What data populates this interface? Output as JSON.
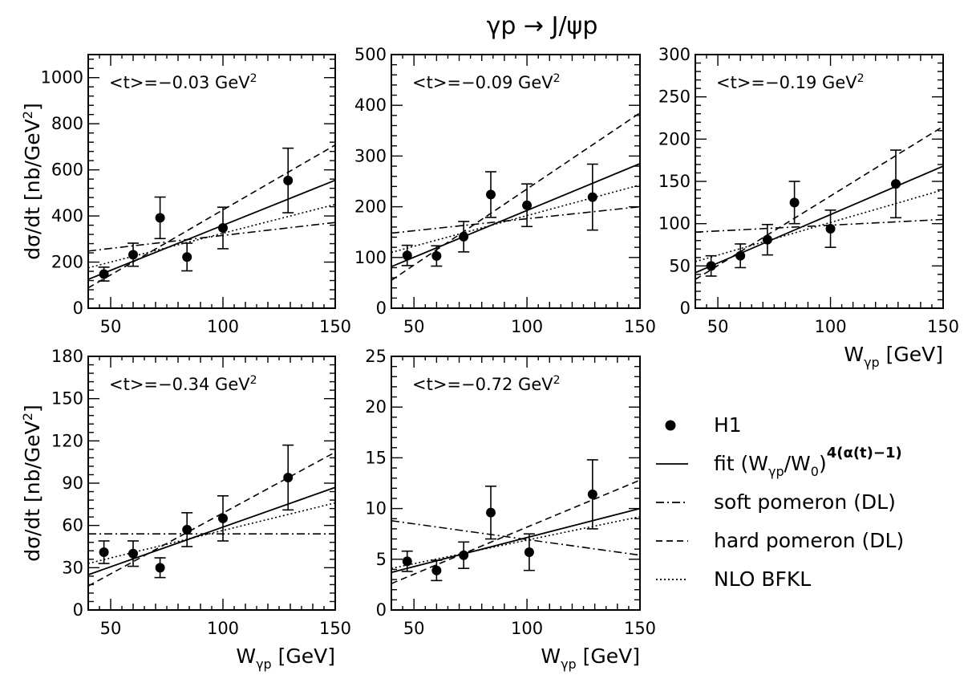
{
  "figure": {
    "title": "γp → J/ψp",
    "legend": {
      "placement": "bottom-right",
      "items": [
        {
          "key": "h1",
          "label": "H1",
          "marker": "filled-circle"
        },
        {
          "key": "fit",
          "label": "fit (W",
          "label_sub": "γp",
          "label_mid": "/W",
          "label_sub2": "0",
          "label_mid2": ")",
          "label_sup": "4(α(t)−1)",
          "style": "solid"
        },
        {
          "key": "soft",
          "label": "soft pomeron (DL)",
          "style": "dashdot"
        },
        {
          "key": "hard",
          "label": "hard pomeron (DL)",
          "style": "dashed"
        },
        {
          "key": "bfkl",
          "label": "NLO BFKL",
          "style": "dotted"
        }
      ]
    }
  },
  "chart_data": [
    {
      "type": "scatter",
      "annotation": "<t>=−0.03 GeV",
      "annotation_sup": "2",
      "ylabel": "dσ/dt [nb/GeV",
      "ylabel_sup": "2",
      "ylabel_end": "]",
      "xlabel": "",
      "xlim": [
        40,
        150
      ],
      "ylim": [
        0,
        1100
      ],
      "xticks": [
        50,
        100,
        150
      ],
      "yticks": [
        0,
        200,
        400,
        600,
        800,
        1000
      ],
      "grid": false,
      "series": [
        {
          "key": "h1",
          "x": [
            47,
            60,
            72,
            84,
            100,
            129
          ],
          "y": [
            148,
            232,
            392,
            222,
            348,
            554
          ],
          "err": [
            30,
            50,
            90,
            60,
            90,
            140
          ]
        },
        {
          "key": "fit",
          "x": [
            40,
            150
          ],
          "y": [
            125,
            555
          ]
        },
        {
          "key": "soft",
          "x": [
            40,
            150
          ],
          "y": [
            248,
            372
          ]
        },
        {
          "key": "hard",
          "x": [
            40,
            150
          ],
          "y": [
            88,
            708
          ]
        },
        {
          "key": "bfkl",
          "x": [
            40,
            150
          ],
          "y": [
            175,
            450
          ]
        }
      ]
    },
    {
      "type": "scatter",
      "annotation": "<t>=−0.09 GeV",
      "annotation_sup": "2",
      "ylabel": "",
      "xlabel": "",
      "xlim": [
        40,
        150
      ],
      "ylim": [
        0,
        500
      ],
      "xticks": [
        50,
        100,
        150
      ],
      "yticks": [
        0,
        100,
        200,
        300,
        400,
        500
      ],
      "grid": false,
      "series": [
        {
          "key": "h1",
          "x": [
            47,
            60,
            72,
            84,
            100,
            129
          ],
          "y": [
            104,
            103,
            141,
            224,
            203,
            219
          ],
          "err": [
            20,
            20,
            30,
            45,
            42,
            65
          ]
        },
        {
          "key": "fit",
          "x": [
            40,
            150
          ],
          "y": [
            82,
            285
          ]
        },
        {
          "key": "soft",
          "x": [
            40,
            150
          ],
          "y": [
            148,
            200
          ]
        },
        {
          "key": "hard",
          "x": [
            40,
            150
          ],
          "y": [
            55,
            385
          ]
        },
        {
          "key": "bfkl",
          "x": [
            40,
            150
          ],
          "y": [
            110,
            243
          ]
        }
      ]
    },
    {
      "type": "scatter",
      "annotation": "<t>=−0.19 GeV",
      "annotation_sup": "2",
      "ylabel": "",
      "xlabel": "W",
      "xlabel_sub": "γp",
      "xlabel_end": " [GeV]",
      "xlim": [
        40,
        150
      ],
      "ylim": [
        0,
        300
      ],
      "xticks": [
        50,
        100,
        150
      ],
      "yticks": [
        0,
        50,
        100,
        150,
        200,
        250,
        300
      ],
      "grid": false,
      "series": [
        {
          "key": "h1",
          "x": [
            47,
            60,
            72,
            84,
            100,
            129
          ],
          "y": [
            50,
            62,
            81,
            125,
            94,
            147
          ],
          "err": [
            12,
            14,
            18,
            25,
            22,
            40
          ]
        },
        {
          "key": "fit",
          "x": [
            40,
            150
          ],
          "y": [
            42,
            168
          ]
        },
        {
          "key": "soft",
          "x": [
            40,
            150
          ],
          "y": [
            90,
            105
          ]
        },
        {
          "key": "hard",
          "x": [
            40,
            150
          ],
          "y": [
            34,
            215
          ]
        },
        {
          "key": "bfkl",
          "x": [
            40,
            150
          ],
          "y": [
            55,
            140
          ]
        }
      ]
    },
    {
      "type": "scatter",
      "annotation": "<t>=−0.34 GeV",
      "annotation_sup": "2",
      "ylabel": "dσ/dt [nb/GeV",
      "ylabel_sup": "2",
      "ylabel_end": "]",
      "xlabel": "W",
      "xlabel_sub": "γp",
      "xlabel_end": " [GeV]",
      "xlim": [
        40,
        150
      ],
      "ylim": [
        0,
        180
      ],
      "xticks": [
        50,
        100,
        150
      ],
      "yticks": [
        0,
        30,
        60,
        90,
        120,
        150,
        180
      ],
      "grid": false,
      "series": [
        {
          "key": "h1",
          "x": [
            47,
            60,
            72,
            84,
            100,
            129
          ],
          "y": [
            41,
            40,
            30,
            57,
            65,
            94
          ],
          "err": [
            8,
            9,
            7,
            12,
            16,
            23
          ]
        },
        {
          "key": "fit",
          "x": [
            40,
            150
          ],
          "y": [
            25,
            87
          ]
        },
        {
          "key": "soft",
          "x": [
            40,
            150
          ],
          "y": [
            54,
            54
          ]
        },
        {
          "key": "hard",
          "x": [
            40,
            150
          ],
          "y": [
            17,
            112
          ]
        },
        {
          "key": "bfkl",
          "x": [
            40,
            150
          ],
          "y": [
            33,
            76
          ]
        }
      ]
    },
    {
      "type": "scatter",
      "annotation": "<t>=−0.72 GeV",
      "annotation_sup": "2",
      "ylabel": "",
      "xlabel": "W",
      "xlabel_sub": "γp",
      "xlabel_end": " [GeV]",
      "xlim": [
        40,
        150
      ],
      "ylim": [
        0,
        25
      ],
      "xticks": [
        50,
        100,
        150
      ],
      "yticks": [
        0,
        5,
        10,
        15,
        20,
        25
      ],
      "grid": false,
      "series": [
        {
          "key": "h1",
          "x": [
            47,
            60,
            72,
            84,
            101,
            129
          ],
          "y": [
            4.8,
            3.9,
            5.4,
            9.6,
            5.7,
            11.4
          ],
          "err": [
            1.0,
            1.0,
            1.3,
            2.6,
            1.8,
            3.4
          ]
        },
        {
          "key": "fit",
          "x": [
            40,
            150
          ],
          "y": [
            3.7,
            10.0
          ]
        },
        {
          "key": "soft",
          "x": [
            40,
            150
          ],
          "y": [
            8.8,
            5.4
          ]
        },
        {
          "key": "hard",
          "x": [
            40,
            150
          ],
          "y": [
            2.6,
            12.8
          ]
        },
        {
          "key": "bfkl",
          "x": [
            40,
            150
          ],
          "y": [
            4.1,
            9.2
          ]
        }
      ]
    }
  ]
}
